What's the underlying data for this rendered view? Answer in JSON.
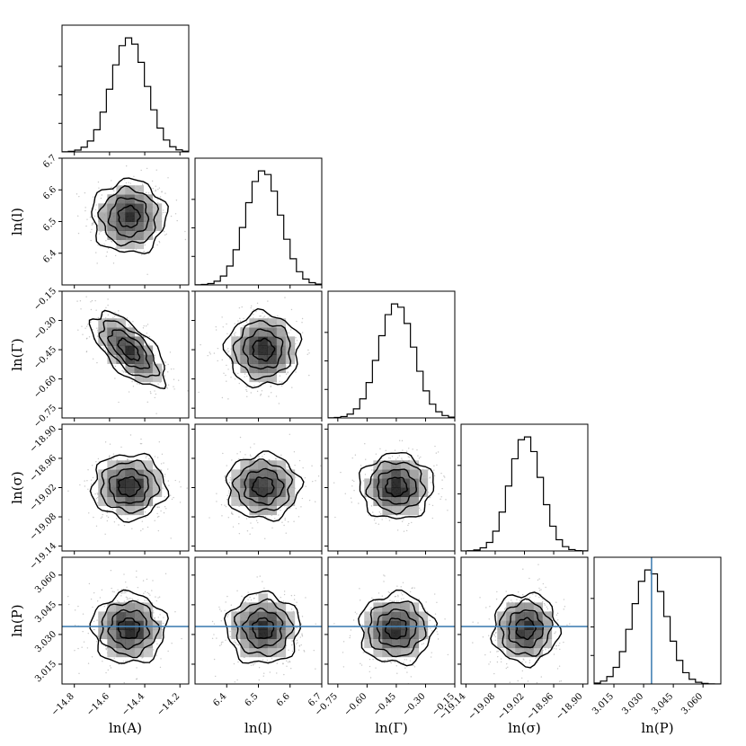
{
  "chart_data": {
    "type": "corner",
    "parameters": [
      {
        "key": "lnA",
        "label": "ln(A)",
        "ticks": [
          -14.8,
          -14.6,
          -14.4,
          -14.2
        ],
        "tick_labels": [
          "−14.8",
          "−14.6",
          "−14.4",
          "−14.2"
        ],
        "range": [
          -14.87,
          -14.15
        ],
        "mean": -14.49,
        "sd": 0.1
      },
      {
        "key": "lnl",
        "label": "ln(l)",
        "ticks": [
          6.4,
          6.5,
          6.6,
          6.7
        ],
        "tick_labels": [
          "6.4",
          "6.5",
          "6.6",
          "6.7"
        ],
        "range": [
          6.3,
          6.7
        ],
        "mean": 6.515,
        "sd": 0.055
      },
      {
        "key": "lnGamma",
        "label": "ln(Γ)",
        "ticks": [
          -0.75,
          -0.6,
          -0.45,
          -0.3,
          -0.15
        ],
        "tick_labels": [
          "−0.75",
          "−0.60",
          "−0.45",
          "−0.30",
          "−0.15"
        ],
        "range": [
          -0.8,
          -0.15
        ],
        "mean": -0.45,
        "sd": 0.09
      },
      {
        "key": "lnsigma",
        "label": "ln(σ)",
        "ticks": [
          -19.14,
          -19.08,
          -19.02,
          -18.96,
          -18.9
        ],
        "tick_labels": [
          "−19.14",
          "−19.08",
          "−19.02",
          "−18.96",
          "−18.90"
        ],
        "range": [
          -19.15,
          -18.89
        ],
        "mean": -19.018,
        "sd": 0.032
      },
      {
        "key": "lnP",
        "label": "ln(P)",
        "ticks": [
          3.015,
          3.03,
          3.045,
          3.06
        ],
        "tick_labels": [
          "3.015",
          "3.030",
          "3.045",
          "3.060"
        ],
        "range": [
          3.005,
          3.069
        ],
        "mean": 3.033,
        "sd": 0.0085
      }
    ],
    "correlations": [
      {
        "i": 2,
        "j": 0,
        "rho": -0.65
      }
    ],
    "truth": {
      "lnP": 3.034
    },
    "truth_color": "#4682b4",
    "hist_color": "#000000",
    "contour_color": "#000000",
    "histogram_bins": 20
  }
}
